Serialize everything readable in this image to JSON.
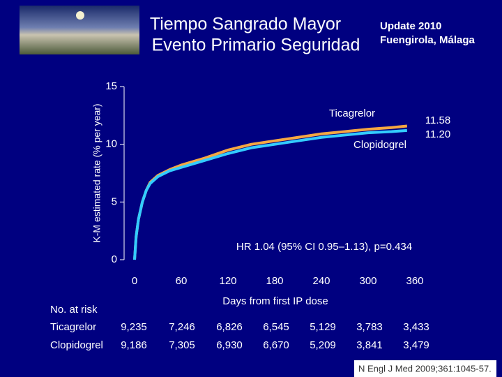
{
  "chart_data": {
    "type": "line",
    "title": [
      "Tiempo Sangrado Mayor",
      "Evento Primario Seguridad"
    ],
    "header_note": [
      "Update 2010",
      "Fuengirola, Málaga"
    ],
    "y_label": "K-M estimated rate (% per year)",
    "x_label": "Days from first IP dose",
    "xlim": [
      0,
      360
    ],
    "xticks": [
      0,
      60,
      120,
      180,
      240,
      300,
      360
    ],
    "ylim": [
      0,
      15
    ],
    "yticks": [
      0,
      5,
      10,
      15
    ],
    "series": [
      {
        "name": "Ticagrelor",
        "color": "#f5a742",
        "end_label": "11.58",
        "x": [
          0,
          2,
          5,
          10,
          15,
          20,
          30,
          45,
          60,
          90,
          120,
          150,
          180,
          210,
          240,
          270,
          300,
          330,
          350
        ],
        "values": [
          0,
          2,
          3.5,
          5,
          6,
          6.7,
          7.3,
          7.8,
          8.2,
          8.8,
          9.5,
          10.0,
          10.3,
          10.6,
          10.9,
          11.1,
          11.3,
          11.45,
          11.58
        ]
      },
      {
        "name": "Clopidogrel",
        "color": "#33ccff",
        "end_label": "11.20",
        "x": [
          0,
          2,
          5,
          10,
          15,
          20,
          30,
          45,
          60,
          90,
          120,
          150,
          180,
          210,
          240,
          270,
          300,
          330,
          350
        ],
        "values": [
          0,
          2,
          3.5,
          5,
          6,
          6.6,
          7.2,
          7.7,
          8.0,
          8.6,
          9.2,
          9.7,
          10.0,
          10.3,
          10.6,
          10.8,
          11.0,
          11.1,
          11.2
        ]
      }
    ],
    "annotation": "HR 1.04 (95% CI 0.95–1.13), p=0.434",
    "risk_table": {
      "title": "No. at risk",
      "rows": [
        {
          "name": "Ticagrelor",
          "values": [
            "9,235",
            "7,246",
            "6,826",
            "6,545",
            "5,129",
            "3,783",
            "3,433"
          ]
        },
        {
          "name": "Clopidogrel",
          "values": [
            "9,186",
            "7,305",
            "6,930",
            "6,670",
            "5,209",
            "3,841",
            "3,479"
          ]
        }
      ]
    },
    "citation": "N Engl J Med 2009;361:1045-57."
  }
}
